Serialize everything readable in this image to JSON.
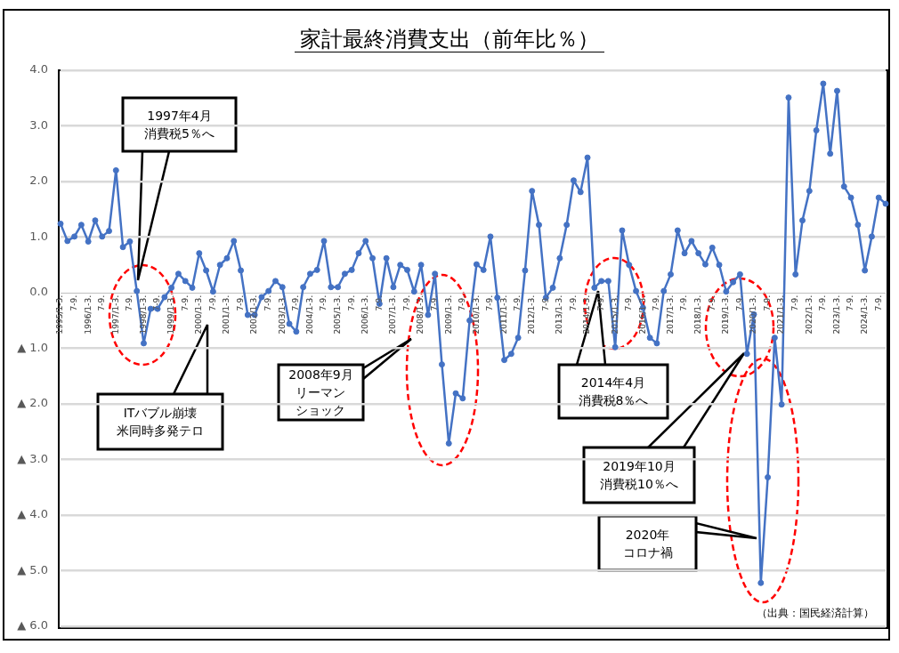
{
  "chart_data": {
    "type": "line",
    "title": "家計最終消費支出（前年比％）",
    "categories": [
      "1995/1-3.",
      null,
      "7-9.",
      null,
      "1996/1-3.",
      null,
      "7-9.",
      null,
      "1997/1-3.",
      null,
      "7-9.",
      null,
      "1998/1-3.",
      null,
      "7-9.",
      null,
      "1999/1-3.",
      null,
      "7-9.",
      null,
      "2000/1-3.",
      null,
      "7-9.",
      null,
      "2001/1-3.",
      null,
      "7-9.",
      null,
      "2002/1-3.",
      null,
      "7-9.",
      null,
      "2003/1-3.",
      null,
      "7-9.",
      null,
      "2004/1-3.",
      null,
      "7-9.",
      null,
      "2005/1-3.",
      null,
      "7-9.",
      null,
      "2006/1-3.",
      null,
      "7-9.",
      null,
      "2007/1-3.",
      null,
      "7-9.",
      null,
      "2008/1-3.",
      null,
      "7-9.",
      null,
      "2009/1-3.",
      null,
      "7-9.",
      null,
      "2010/1-3.",
      null,
      "7-9.",
      null,
      "2011/1-3.",
      null,
      "7-9.",
      null,
      "2012/1-3.",
      null,
      "7-9.",
      null,
      "2013/1-3.",
      null,
      "7-9.",
      null,
      "2014/1-3.",
      null,
      "7-9.",
      null,
      "2015/1-3.",
      null,
      "7-9.",
      null,
      "2016/1-3.",
      null,
      "7-9.",
      null,
      "2017/1-3.",
      null,
      "7-9.",
      null,
      "2018/1-3.",
      null,
      "7-9.",
      null,
      "2019/1-3.",
      null,
      "7-9.",
      null,
      "2020/1-3.",
      null,
      "7-9.",
      null,
      "2021/1-3.",
      null,
      "7-9.",
      null,
      "2022/1-3.",
      null,
      "7-9.",
      null,
      "2023/1-3.",
      null,
      "7-9.",
      null,
      "2024/1-3.",
      null,
      "7-9.",
      null
    ],
    "series": [
      {
        "color": "#4472c4",
        "values": [
          1.24,
          0.93,
          1.01,
          1.22,
          0.92,
          1.3,
          1.01,
          1.11,
          2.2,
          0.82,
          0.92,
          0.03,
          -0.91,
          -0.29,
          -0.29,
          -0.08,
          0.09,
          0.34,
          0.21,
          0.09,
          0.71,
          0.4,
          0.02,
          0.5,
          0.62,
          0.93,
          0.4,
          -0.4,
          -0.4,
          -0.08,
          0.03,
          0.21,
          0.1,
          -0.56,
          -0.7,
          0.1,
          0.34,
          0.41,
          0.93,
          0.1,
          0.1,
          0.34,
          0.41,
          0.71,
          0.93,
          0.62,
          -0.2,
          0.62,
          0.1,
          0.5,
          0.41,
          0.02,
          0.5,
          -0.4,
          0.34,
          -1.29,
          -2.71,
          -1.81,
          -1.9,
          -0.5,
          0.51,
          0.41,
          1.01,
          -0.09,
          -1.21,
          -1.1,
          -0.81,
          0.4,
          1.83,
          1.22,
          -0.09,
          0.09,
          0.62,
          1.22,
          2.02,
          1.81,
          2.43,
          0.09,
          0.21,
          0.21,
          -0.98,
          1.12,
          0.5,
          0.03,
          -0.27,
          -0.81,
          -0.91,
          0.03,
          0.33,
          1.12,
          0.71,
          0.93,
          0.71,
          0.51,
          0.81,
          0.5,
          0.02,
          0.19,
          0.33,
          -1.1,
          -0.39,
          -5.22,
          -3.32,
          -0.81,
          -2.01,
          3.51,
          0.33,
          1.3,
          1.83,
          2.92,
          3.76,
          2.5,
          3.63,
          1.91,
          1.71,
          1.22,
          0.4,
          1.01,
          1.71,
          1.6
        ]
      }
    ],
    "ylim": [
      -6,
      4
    ],
    "yticks": [
      {
        "value": 4,
        "label": "4.0"
      },
      {
        "value": 3,
        "label": "3.0"
      },
      {
        "value": 2,
        "label": "2.0"
      },
      {
        "value": 1,
        "label": "1.0"
      },
      {
        "value": 0,
        "label": "0.0"
      },
      {
        "value": -1,
        "label": "▲ 1.0"
      },
      {
        "value": -2,
        "label": "▲ 2.0"
      },
      {
        "value": -3,
        "label": "▲ 3.0"
      },
      {
        "value": -4,
        "label": "▲ 4.0"
      },
      {
        "value": -5,
        "label": "▲ 5.0"
      },
      {
        "value": -6,
        "label": "▲ 6.0"
      }
    ],
    "grid": "y",
    "marker": "circle",
    "line_style": "solid",
    "annotations": [
      "1997年4月消費税5％へ",
      "ITバブル崩壊米同時多発テロ",
      "2008年9月リーマンショック",
      "2014年4月消費税8％へ",
      "2019年10月消費税10％へ",
      "2020年コロナ禍",
      "（出典：国民経済計算）"
    ]
  }
}
